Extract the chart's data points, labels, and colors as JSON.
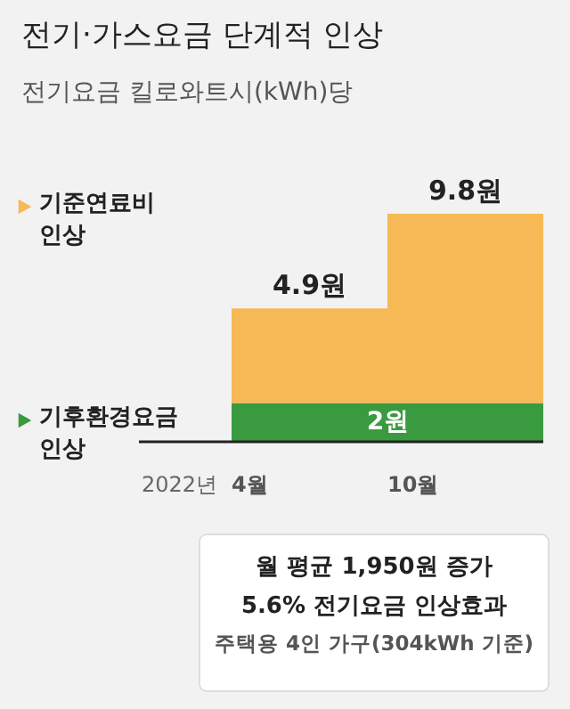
{
  "chart_data": {
    "type": "bar",
    "title": "전기·가스요금 단계적 인상",
    "subtitle": "전기요금 킬로와트시(kWh)당",
    "categories": [
      "4월",
      "10월"
    ],
    "stacked": true,
    "tick_labels": "x",
    "legend": "left",
    "series": [
      {
        "name": "기후환경요금 인상",
        "color": "#3a9a3f",
        "values": [
          2,
          2
        ],
        "value_labels": [
          "2원",
          null
        ]
      },
      {
        "name": "기준연료비 인상",
        "color": "#f7b955",
        "values": [
          4.9,
          9.8
        ],
        "value_labels": [
          "4.9원",
          "9.8원"
        ]
      }
    ],
    "annotations": [
      "2022년",
      "월 평균 1,950원 증가",
      "5.6% 전기요금 인상효과",
      "주택용 4인 가구(304kWh 기준)"
    ]
  }
}
